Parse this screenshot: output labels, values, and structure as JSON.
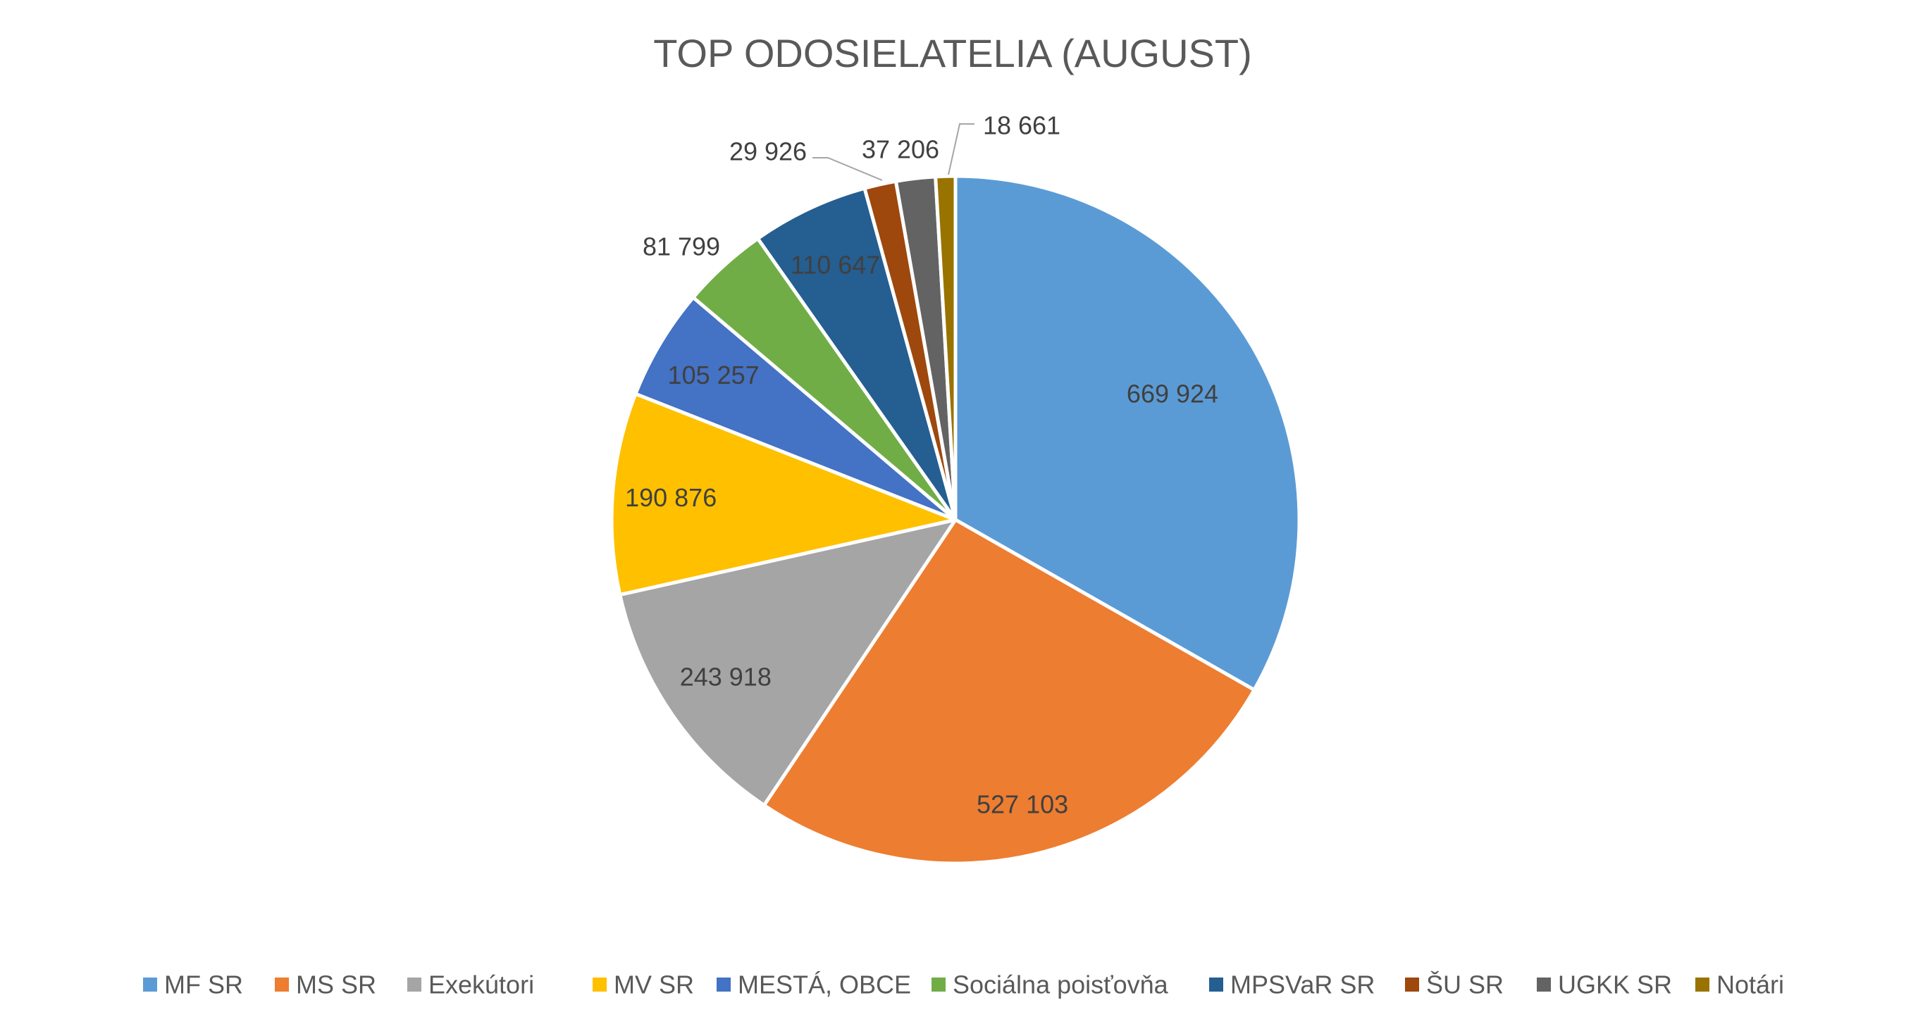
{
  "chart_data": {
    "type": "pie",
    "title": "TOP ODOSIELATELIA (AUGUST)",
    "legend_position": "bottom",
    "slices": [
      {
        "name": "MF SR",
        "value": 669924,
        "label": "669 924",
        "color": "#5B9BD5"
      },
      {
        "name": "MS SR",
        "value": 527103,
        "label": "527 103",
        "color": "#ED7D31"
      },
      {
        "name": "Exekútori",
        "value": 243918,
        "label": "243 918",
        "color": "#A5A5A5"
      },
      {
        "name": "MV SR",
        "value": 190876,
        "label": "190 876",
        "color": "#FFC000"
      },
      {
        "name": "MESTÁ, OBCE",
        "value": 105257,
        "label": "105 257",
        "color": "#4472C4"
      },
      {
        "name": "Sociálna poisťovňa",
        "value": 81799,
        "label": "81 799",
        "color": "#70AD47"
      },
      {
        "name": "MPSVaR SR",
        "value": 110647,
        "label": "110 647",
        "color": "#255E91"
      },
      {
        "name": "ŠU SR",
        "value": 29926,
        "label": "29 926",
        "color": "#9E480E"
      },
      {
        "name": "UGKK SR",
        "value": 37206,
        "label": "37 206",
        "color": "#636363"
      },
      {
        "name": "Notári",
        "value": 18661,
        "label": "18 661",
        "color": "#997300"
      }
    ]
  }
}
